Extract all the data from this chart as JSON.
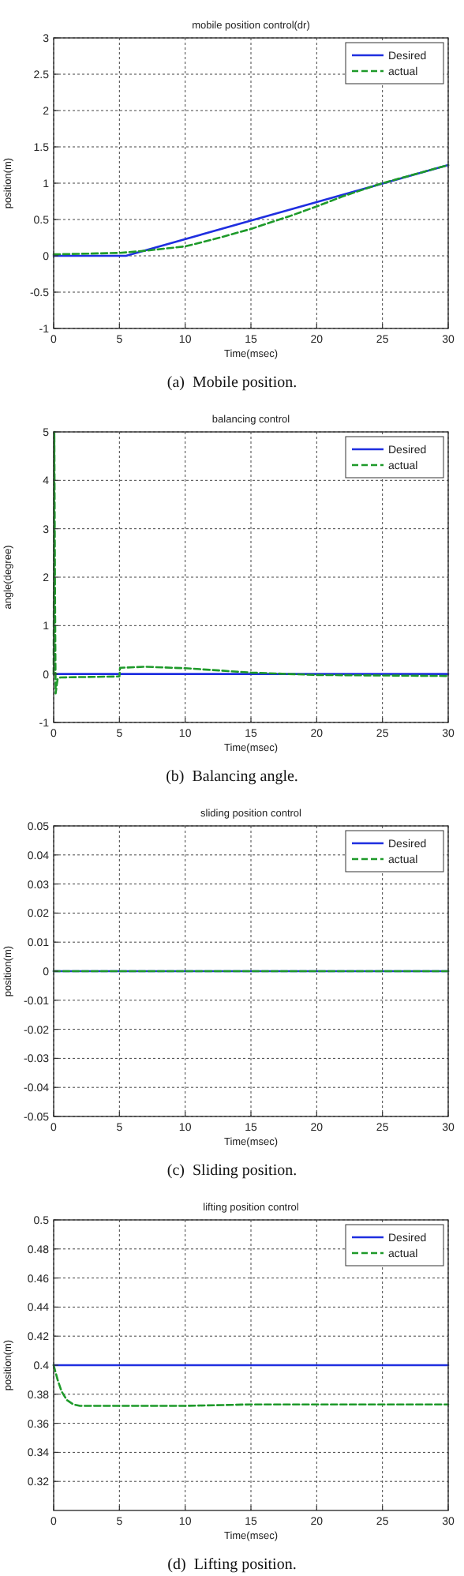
{
  "chart_data": [
    {
      "type": "line",
      "title": "mobile position control(dr)",
      "xlabel": "Time(msec)",
      "ylabel": "position(m)",
      "annotations": [
        "(a)  Mobile position."
      ],
      "xlim": [
        0,
        30
      ],
      "xticks": [
        0,
        5,
        10,
        15,
        20,
        25,
        30
      ],
      "ylim": [
        -1,
        3
      ],
      "yticks": [
        -1,
        -0.5,
        0,
        0.5,
        1,
        1.5,
        2,
        2.5,
        3
      ],
      "grid": true,
      "legend": "top right",
      "series": [
        {
          "name": "Desired",
          "color": "#1f2fe0",
          "line_style": "solid",
          "x": [
            0,
            5.5,
            30
          ],
          "values": [
            0,
            0,
            1.25
          ]
        },
        {
          "name": "actual",
          "color": "#1e9a2a",
          "line_style": "dashed",
          "x": [
            0,
            5,
            7,
            10,
            12,
            15,
            18,
            20,
            22,
            25,
            28,
            30
          ],
          "values": [
            0.02,
            0.04,
            0.07,
            0.13,
            0.22,
            0.37,
            0.55,
            0.68,
            0.82,
            1.0,
            1.15,
            1.25
          ]
        }
      ]
    },
    {
      "type": "line",
      "title": "balancing control",
      "xlabel": "Time(msec)",
      "ylabel": "angle(degree)",
      "annotations": [
        "(b)  Balancing angle."
      ],
      "xlim": [
        0,
        30
      ],
      "xticks": [
        0,
        5,
        10,
        15,
        20,
        25,
        30
      ],
      "ylim": [
        -1,
        5
      ],
      "yticks": [
        -1,
        0,
        1,
        2,
        3,
        4,
        5
      ],
      "grid": true,
      "legend": "top right",
      "series": [
        {
          "name": "Desired",
          "color": "#1f2fe0",
          "line_style": "solid",
          "x": [
            0,
            30
          ],
          "values": [
            0,
            0
          ]
        },
        {
          "name": "actual",
          "color": "#1e9a2a",
          "line_style": "dashed",
          "x": [
            0,
            0.05,
            0.1,
            0.15,
            0.2,
            0.3,
            0.5,
            5,
            5.05,
            7,
            10,
            15,
            20,
            25,
            30
          ],
          "values": [
            0,
            5,
            1.8,
            -0.4,
            -0.3,
            -0.1,
            -0.07,
            -0.05,
            0.13,
            0.15,
            0.12,
            0.03,
            -0.02,
            -0.03,
            -0.04
          ]
        }
      ]
    },
    {
      "type": "line",
      "title": "sliding position control",
      "xlabel": "Time(msec)",
      "ylabel": "position(m)",
      "annotations": [
        "(c)  Sliding position."
      ],
      "xlim": [
        0,
        30
      ],
      "xticks": [
        0,
        5,
        10,
        15,
        20,
        25,
        30
      ],
      "ylim": [
        -0.05,
        0.05
      ],
      "yticks": [
        -0.05,
        -0.04,
        -0.03,
        -0.02,
        -0.01,
        0,
        0.01,
        0.02,
        0.03,
        0.04,
        0.05
      ],
      "grid": true,
      "legend": "top right",
      "series": [
        {
          "name": "Desired",
          "color": "#1f2fe0",
          "line_style": "solid",
          "x": [
            0,
            30
          ],
          "values": [
            0,
            0
          ]
        },
        {
          "name": "actual",
          "color": "#1e9a2a",
          "line_style": "dashed",
          "x": [
            0,
            30
          ],
          "values": [
            0,
            0
          ]
        }
      ]
    },
    {
      "type": "line",
      "title": "lifting position control",
      "xlabel": "Time(msec)",
      "ylabel": "position(m)",
      "annotations": [
        "(d)  Lifting position."
      ],
      "xlim": [
        0,
        30
      ],
      "xticks": [
        0,
        5,
        10,
        15,
        20,
        25,
        30
      ],
      "ylim": [
        0.3,
        0.5
      ],
      "yticks": [
        0.32,
        0.34,
        0.36,
        0.38,
        0.4,
        0.42,
        0.44,
        0.46,
        0.48,
        0.5
      ],
      "grid": true,
      "legend": "top right",
      "series": [
        {
          "name": "Desired",
          "color": "#1f2fe0",
          "line_style": "solid",
          "x": [
            0,
            30
          ],
          "values": [
            0.4,
            0.4
          ]
        },
        {
          "name": "actual",
          "color": "#1e9a2a",
          "line_style": "dashed",
          "x": [
            0,
            0.3,
            0.6,
            1,
            1.5,
            2,
            5,
            10,
            15,
            20,
            25,
            30
          ],
          "values": [
            0.4,
            0.39,
            0.382,
            0.376,
            0.373,
            0.372,
            0.372,
            0.372,
            0.373,
            0.373,
            0.373,
            0.373
          ]
        }
      ]
    }
  ]
}
